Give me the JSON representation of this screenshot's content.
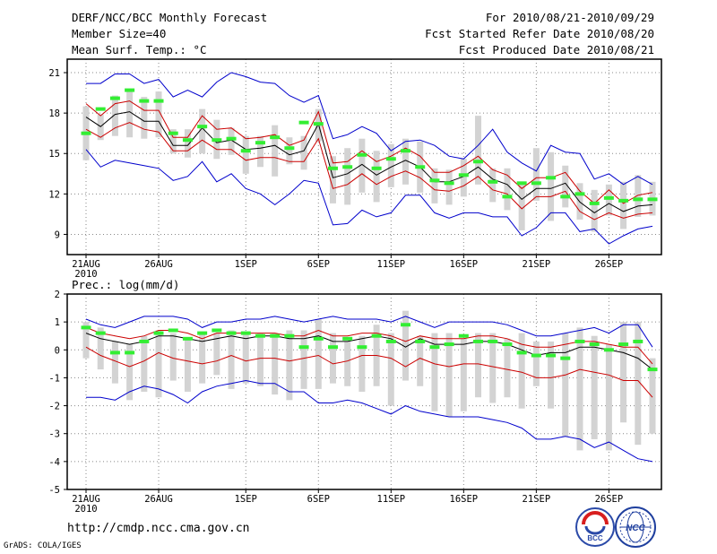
{
  "header": {
    "title": "DERF/NCC/BCC Monthly Forecast",
    "member_size": "Member Size=40",
    "variable": "Mean Surf. Temp.: °C",
    "period": "For 2010/08/21-2010/09/29",
    "start_date": "Fcst Started Refer Date 2010/08/20",
    "produced_date": "Fcst Produced Date 2010/08/21"
  },
  "footer": {
    "url": "http://cmdp.ncc.cma.gov.cn",
    "credit": "GrADS: COLA/IGES"
  },
  "logos": {
    "bcc": "BCC",
    "ncc": "NCC"
  },
  "colors": {
    "max_min": "#0000cc",
    "quartile": "#cc0000",
    "mean": "#000000",
    "median": "#33ee33",
    "box": "#d3d3d3"
  },
  "chart_data": [
    {
      "type": "line",
      "title": "Mean Surf. Temp.: °C",
      "ylim": [
        7.5,
        22
      ],
      "yticks": [
        9,
        12,
        15,
        18,
        21
      ],
      "day_count": 40,
      "x_ticks": [
        {
          "day": 1,
          "label": "21AUG",
          "sub": "2010"
        },
        {
          "day": 6,
          "label": "26AUG",
          "sub": ""
        },
        {
          "day": 12,
          "label": "1SEP",
          "sub": ""
        },
        {
          "day": 17,
          "label": "6SEP",
          "sub": ""
        },
        {
          "day": 22,
          "label": "11SEP",
          "sub": ""
        },
        {
          "day": 27,
          "label": "16SEP",
          "sub": ""
        },
        {
          "day": 32,
          "label": "21SEP",
          "sub": ""
        },
        {
          "day": 37,
          "label": "26SEP",
          "sub": ""
        }
      ],
      "series": [
        {
          "name": "max",
          "values": [
            20.2,
            20.2,
            20.9,
            20.9,
            20.2,
            20.5,
            19.2,
            19.7,
            19.2,
            20.3,
            21.0,
            20.7,
            20.3,
            20.2,
            19.3,
            18.8,
            19.3,
            16.1,
            16.4,
            17.0,
            16.5,
            15.2,
            15.9,
            16.0,
            15.6,
            14.8,
            14.6,
            15.6,
            16.8,
            15.1,
            14.3,
            13.7,
            15.6,
            15.1,
            15.0,
            13.1,
            13.5,
            12.7,
            13.3,
            12.7
          ]
        },
        {
          "name": "q3",
          "values": [
            18.7,
            17.8,
            18.7,
            18.9,
            18.2,
            18.2,
            16.2,
            16.2,
            17.8,
            16.8,
            16.9,
            16.1,
            16.2,
            16.4,
            15.6,
            16.0,
            18.1,
            14.3,
            14.4,
            15.2,
            14.4,
            14.8,
            15.4,
            14.8,
            13.6,
            13.6,
            14.1,
            14.8,
            13.8,
            13.4,
            12.4,
            13.2,
            13.2,
            13.6,
            12.2,
            11.3,
            12.3,
            11.3,
            11.9,
            12.1
          ]
        },
        {
          "name": "mean",
          "values": [
            17.7,
            17.0,
            17.9,
            18.1,
            17.4,
            17.4,
            15.6,
            15.6,
            16.9,
            15.8,
            16.0,
            15.3,
            15.4,
            15.6,
            14.9,
            15.2,
            17.2,
            13.2,
            13.5,
            14.2,
            13.4,
            14.0,
            14.5,
            14.0,
            12.9,
            12.9,
            13.3,
            14.0,
            13.1,
            12.7,
            11.6,
            12.4,
            12.4,
            12.8,
            11.4,
            10.6,
            11.3,
            10.7,
            11.1,
            11.2
          ]
        },
        {
          "name": "q1",
          "values": [
            16.8,
            16.2,
            16.9,
            17.3,
            16.8,
            16.6,
            15.2,
            15.2,
            16.0,
            15.3,
            15.3,
            14.5,
            14.7,
            14.7,
            14.4,
            14.4,
            16.1,
            12.4,
            12.7,
            13.5,
            12.7,
            13.3,
            13.7,
            13.2,
            12.3,
            12.2,
            12.6,
            13.3,
            12.3,
            12.0,
            10.9,
            11.8,
            11.8,
            12.2,
            10.7,
            10.1,
            10.6,
            10.2,
            10.5,
            10.6
          ]
        },
        {
          "name": "min",
          "values": [
            15.3,
            14.0,
            14.5,
            14.3,
            14.1,
            13.9,
            13.0,
            13.3,
            14.4,
            12.9,
            13.5,
            12.4,
            12.0,
            11.2,
            12.0,
            13.0,
            12.8,
            9.7,
            9.8,
            10.8,
            10.3,
            10.6,
            11.9,
            11.9,
            10.6,
            10.2,
            10.6,
            10.6,
            10.3,
            10.3,
            8.9,
            9.5,
            10.6,
            10.6,
            9.2,
            9.4,
            8.3,
            8.9,
            9.4,
            9.6
          ]
        }
      ],
      "boxes": {
        "top": [
          18.5,
          17.9,
          19.3,
          19.6,
          19.2,
          19.6,
          16.8,
          16.8,
          18.3,
          17.5,
          16.9,
          16.3,
          16.3,
          17.1,
          16.2,
          16.3,
          18.3,
          14.8,
          15.4,
          16.1,
          15.2,
          15.7,
          16.1,
          15.9,
          13.9,
          13.8,
          14.6,
          17.8,
          13.9,
          13.9,
          12.7,
          15.4,
          15.1,
          14.1,
          12.8,
          12.3,
          12.7,
          12.9,
          13.4,
          12.9
        ],
        "bottom": [
          14.5,
          16.0,
          16.3,
          16.2,
          16.1,
          16.2,
          15.0,
          14.7,
          15.0,
          14.6,
          14.9,
          13.5,
          14.0,
          13.3,
          14.2,
          13.8,
          15.9,
          11.3,
          11.2,
          12.1,
          11.4,
          12.5,
          12.7,
          12.1,
          11.3,
          11.2,
          11.8,
          12.7,
          11.4,
          10.8,
          9.3,
          11.5,
          10.0,
          11.0,
          10.1,
          9.2,
          10.4,
          9.4,
          10.3,
          10.4
        ]
      },
      "median": [
        16.5,
        18.3,
        19.1,
        19.7,
        18.9,
        18.9,
        16.5,
        16.0,
        17.0,
        16.0,
        16.1,
        15.2,
        15.8,
        16.2,
        15.4,
        17.3,
        17.2,
        13.9,
        14.0,
        14.9,
        13.9,
        14.6,
        15.2,
        14.0,
        13.0,
        12.8,
        13.4,
        14.4,
        12.9,
        11.8,
        12.8,
        12.8,
        13.2,
        11.8,
        12.0,
        11.3,
        11.7,
        11.5,
        11.6,
        11.6
      ]
    },
    {
      "type": "line",
      "title": "Prec.: log(mm/d)",
      "ylim": [
        -5,
        2
      ],
      "yticks": [
        -5,
        -4,
        -3,
        -2,
        -1,
        0,
        1,
        2
      ],
      "day_count": 40,
      "x_ticks": [
        {
          "day": 1,
          "label": "21AUG",
          "sub": "2010"
        },
        {
          "day": 6,
          "label": "26AUG",
          "sub": ""
        },
        {
          "day": 12,
          "label": "1SEP",
          "sub": ""
        },
        {
          "day": 17,
          "label": "6SEP",
          "sub": ""
        },
        {
          "day": 22,
          "label": "11SEP",
          "sub": ""
        },
        {
          "day": 27,
          "label": "16SEP",
          "sub": ""
        },
        {
          "day": 32,
          "label": "21SEP",
          "sub": ""
        },
        {
          "day": 37,
          "label": "26SEP",
          "sub": ""
        }
      ],
      "series": [
        {
          "name": "max",
          "values": [
            1.1,
            0.9,
            0.8,
            1.0,
            1.2,
            1.2,
            1.2,
            1.1,
            0.8,
            1.0,
            1.0,
            1.1,
            1.1,
            1.2,
            1.1,
            1.0,
            1.1,
            1.2,
            1.1,
            1.1,
            1.1,
            1.0,
            1.2,
            1.0,
            0.8,
            1.0,
            1.0,
            1.0,
            1.0,
            0.9,
            0.7,
            0.5,
            0.5,
            0.6,
            0.7,
            0.8,
            0.6,
            0.9,
            0.9,
            0.1
          ]
        },
        {
          "name": "q3",
          "values": [
            0.8,
            0.6,
            0.5,
            0.4,
            0.5,
            0.7,
            0.7,
            0.6,
            0.4,
            0.6,
            0.6,
            0.6,
            0.6,
            0.6,
            0.5,
            0.5,
            0.7,
            0.5,
            0.5,
            0.6,
            0.6,
            0.5,
            0.3,
            0.5,
            0.4,
            0.4,
            0.4,
            0.5,
            0.5,
            0.4,
            0.2,
            0.1,
            0.1,
            0.2,
            0.3,
            0.3,
            0.2,
            0.1,
            0.1,
            -0.5
          ]
        },
        {
          "name": "mean",
          "values": [
            0.6,
            0.4,
            0.3,
            0.2,
            0.3,
            0.5,
            0.5,
            0.4,
            0.3,
            0.4,
            0.5,
            0.4,
            0.5,
            0.5,
            0.4,
            0.4,
            0.5,
            0.3,
            0.3,
            0.4,
            0.5,
            0.4,
            0.1,
            0.4,
            0.2,
            0.2,
            0.2,
            0.3,
            0.3,
            0.2,
            0.0,
            -0.2,
            -0.1,
            -0.1,
            0.1,
            0.1,
            -0.0,
            -0.1,
            -0.3,
            -0.7
          ]
        },
        {
          "name": "q1",
          "values": [
            0.1,
            -0.2,
            -0.4,
            -0.6,
            -0.4,
            -0.1,
            -0.3,
            -0.4,
            -0.5,
            -0.4,
            -0.2,
            -0.4,
            -0.3,
            -0.3,
            -0.4,
            -0.3,
            -0.2,
            -0.5,
            -0.4,
            -0.2,
            -0.2,
            -0.3,
            -0.6,
            -0.3,
            -0.5,
            -0.6,
            -0.5,
            -0.5,
            -0.6,
            -0.7,
            -0.8,
            -1.0,
            -1.0,
            -0.9,
            -0.7,
            -0.8,
            -0.9,
            -1.1,
            -1.1,
            -1.7
          ]
        },
        {
          "name": "min",
          "values": [
            -1.7,
            -1.7,
            -1.8,
            -1.5,
            -1.3,
            -1.4,
            -1.6,
            -1.9,
            -1.5,
            -1.3,
            -1.2,
            -1.1,
            -1.2,
            -1.2,
            -1.5,
            -1.5,
            -1.9,
            -1.9,
            -1.8,
            -1.9,
            -2.1,
            -2.3,
            -2.0,
            -2.2,
            -2.3,
            -2.4,
            -2.4,
            -2.4,
            -2.5,
            -2.6,
            -2.8,
            -3.2,
            -3.2,
            -3.1,
            -3.2,
            -3.5,
            -3.3,
            -3.6,
            -3.9,
            -4.0
          ]
        }
      ],
      "boxes": {
        "top": [
          1.0,
          0.8,
          0.3,
          0.2,
          0.5,
          0.7,
          0.6,
          0.4,
          0.6,
          0.6,
          0.7,
          0.6,
          0.6,
          0.6,
          0.7,
          0.7,
          1.1,
          0.6,
          0.3,
          0.5,
          0.9,
          0.6,
          1.4,
          0.5,
          0.6,
          0.6,
          0.4,
          0.6,
          0.6,
          0.4,
          0.6,
          0.3,
          0.3,
          0.6,
          0.8,
          0.5,
          0.2,
          1.0,
          1.0,
          -0.3
        ],
        "bottom": [
          -0.3,
          -0.7,
          -1.2,
          -1.8,
          -1.5,
          -1.7,
          -1.1,
          -1.5,
          -1.2,
          -0.9,
          -1.4,
          -1.2,
          -1.3,
          -1.6,
          -1.8,
          -1.4,
          -1.4,
          -1.2,
          -1.3,
          -1.5,
          -1.3,
          -2.0,
          -1.1,
          -1.3,
          -2.2,
          -2.4,
          -2.2,
          -1.7,
          -1.9,
          -1.7,
          -2.1,
          -1.3,
          -2.1,
          -3.1,
          -3.6,
          -3.2,
          -3.6,
          -2.6,
          -3.4,
          -3.0
        ]
      },
      "median": [
        0.8,
        0.6,
        -0.1,
        -0.1,
        0.3,
        0.6,
        0.7,
        0.4,
        0.6,
        0.7,
        0.6,
        0.6,
        0.5,
        0.5,
        0.5,
        0.1,
        0.4,
        0.1,
        0.4,
        0.1,
        0.5,
        0.3,
        0.9,
        0.3,
        0.1,
        0.2,
        0.5,
        0.3,
        0.3,
        0.2,
        -0.1,
        -0.2,
        -0.2,
        -0.3,
        0.3,
        0.2,
        0.0,
        0.2,
        0.3,
        -0.7
      ]
    }
  ]
}
